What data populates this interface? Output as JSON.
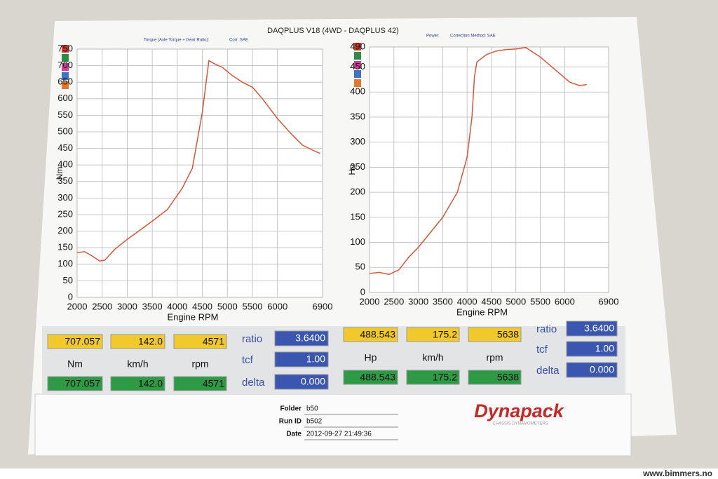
{
  "title": "DAQPLUS V18 (4WD - DAQPLUS 42)",
  "chart_data": [
    {
      "type": "line",
      "subtitle": [
        "Torque (Axle Torque + Gear Ratio):",
        "Corr: SAE"
      ],
      "x_label": "Engine RPM",
      "y_label": "Nm",
      "x": [
        2000,
        2150,
        2300,
        2450,
        2550,
        2750,
        3000,
        3500,
        3800,
        4100,
        4300,
        4500,
        4630,
        4750,
        4900,
        5100,
        5300,
        5500,
        5700,
        6000,
        6300,
        6500,
        6700,
        6850
      ],
      "series": [
        {
          "color": "#d9553a",
          "values": [
            135,
            138,
            125,
            110,
            112,
            145,
            175,
            230,
            265,
            330,
            390,
            560,
            715,
            705,
            695,
            670,
            650,
            635,
            600,
            540,
            490,
            460,
            445,
            435
          ]
        }
      ],
      "xlim": [
        2000,
        6900
      ],
      "xticks": [
        2000,
        2500,
        3000,
        3500,
        4000,
        4500,
        5000,
        5500,
        6000,
        6900
      ],
      "ylim": [
        0,
        750
      ],
      "yticks": [
        0,
        50,
        100,
        150,
        200,
        250,
        300,
        350,
        400,
        450,
        500,
        550,
        600,
        650,
        700,
        750
      ],
      "grid": true
    },
    {
      "type": "line",
      "subtitle": [
        "Power:",
        "Correction Method: SAE"
      ],
      "x_label": "Engine RPM",
      "y_label": "Hp",
      "x": [
        2000,
        2200,
        2400,
        2600,
        2800,
        3000,
        3500,
        3800,
        4000,
        4100,
        4150,
        4200,
        4400,
        4600,
        4800,
        5000,
        5200,
        5500,
        5800,
        6100,
        6300,
        6450
      ],
      "series": [
        {
          "color": "#d9553a",
          "values": [
            38,
            40,
            36,
            45,
            70,
            90,
            150,
            200,
            270,
            350,
            430,
            460,
            475,
            482,
            485,
            486,
            489,
            470,
            445,
            420,
            413,
            415
          ]
        }
      ],
      "xlim": [
        2000,
        6900
      ],
      "xticks": [
        2000,
        2500,
        3000,
        3500,
        4000,
        4500,
        5000,
        5500,
        6000,
        6900
      ],
      "ylim": [
        0,
        490
      ],
      "yticks": [
        0,
        50,
        100,
        150,
        200,
        250,
        300,
        350,
        400,
        450,
        490
      ],
      "grid": true
    }
  ],
  "readouts": [
    {
      "top": [
        "707.057",
        "142.0",
        "4571"
      ],
      "units": [
        "Nm",
        "km/h",
        "rpm"
      ],
      "bottom": [
        "707.057",
        "142.0",
        "4571"
      ],
      "params": [
        {
          "name": "ratio",
          "value": "3.6400"
        },
        {
          "name": "tcf",
          "value": "1.00"
        },
        {
          "name": "delta",
          "value": "0.000"
        }
      ]
    },
    {
      "top": [
        "488.543",
        "175.2",
        "5638"
      ],
      "units": [
        "Hp",
        "km/h",
        "rpm"
      ],
      "bottom": [
        "488.543",
        "175.2",
        "5638"
      ],
      "params": [
        {
          "name": "ratio",
          "value": "3.6400"
        },
        {
          "name": "tcf",
          "value": "1.00"
        },
        {
          "name": "delta",
          "value": "0.000"
        }
      ]
    }
  ],
  "run_info": [
    {
      "label": "Folder",
      "value": "b50"
    },
    {
      "label": "Run ID",
      "value": "b502"
    },
    {
      "label": "Date",
      "value": "2012-09-27 21:49:36"
    }
  ],
  "logo": {
    "name": "Dynapack",
    "tagline": "CHASSIS DYNAMOMETERS"
  },
  "watermark": "www.bimmers.no"
}
